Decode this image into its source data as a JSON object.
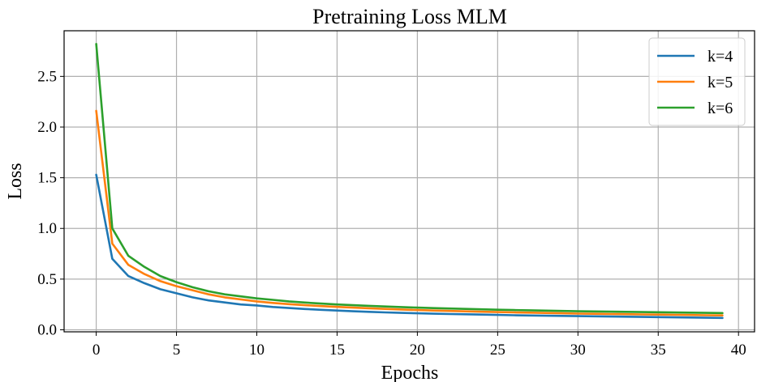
{
  "chart_data": {
    "type": "line",
    "title": "Pretraining Loss MLM",
    "xlabel": "Epochs",
    "ylabel": "Loss",
    "xlim": [
      -2,
      41
    ],
    "ylim": [
      -0.02,
      2.95
    ],
    "xticks": [
      0,
      5,
      10,
      15,
      20,
      25,
      30,
      35,
      40
    ],
    "yticks": [
      0.0,
      0.5,
      1.0,
      1.5,
      2.0,
      2.5
    ],
    "xtick_labels": [
      "0",
      "5",
      "10",
      "15",
      "20",
      "25",
      "30",
      "35",
      "40"
    ],
    "ytick_labels": [
      "0.0",
      "0.5",
      "1.0",
      "1.5",
      "2.0",
      "2.5"
    ],
    "grid": true,
    "legend_position": "top-right",
    "x": [
      0,
      1,
      2,
      3,
      4,
      5,
      6,
      7,
      8,
      9,
      10,
      11,
      12,
      13,
      14,
      15,
      16,
      17,
      18,
      19,
      20,
      21,
      22,
      23,
      24,
      25,
      26,
      27,
      28,
      29,
      30,
      31,
      32,
      33,
      34,
      35,
      36,
      37,
      38,
      39
    ],
    "series": [
      {
        "name": "k=4",
        "color": "#1f77b4",
        "values": [
          1.53,
          0.7,
          0.53,
          0.46,
          0.4,
          0.36,
          0.32,
          0.29,
          0.27,
          0.25,
          0.24,
          0.225,
          0.215,
          0.205,
          0.197,
          0.19,
          0.183,
          0.177,
          0.172,
          0.167,
          0.163,
          0.159,
          0.156,
          0.153,
          0.15,
          0.147,
          0.144,
          0.141,
          0.139,
          0.137,
          0.135,
          0.133,
          0.131,
          0.129,
          0.127,
          0.125,
          0.123,
          0.121,
          0.119,
          0.117
        ]
      },
      {
        "name": "k=5",
        "color": "#ff7f0e",
        "values": [
          2.16,
          0.85,
          0.64,
          0.55,
          0.48,
          0.43,
          0.39,
          0.35,
          0.32,
          0.3,
          0.28,
          0.265,
          0.253,
          0.243,
          0.234,
          0.226,
          0.219,
          0.212,
          0.206,
          0.2,
          0.195,
          0.19,
          0.186,
          0.182,
          0.178,
          0.175,
          0.172,
          0.169,
          0.166,
          0.163,
          0.16,
          0.158,
          0.156,
          0.154,
          0.152,
          0.15,
          0.148,
          0.146,
          0.144,
          0.142
        ]
      },
      {
        "name": "k=6",
        "color": "#2ca02c",
        "values": [
          2.82,
          1.0,
          0.73,
          0.62,
          0.53,
          0.47,
          0.42,
          0.38,
          0.35,
          0.33,
          0.31,
          0.295,
          0.28,
          0.269,
          0.259,
          0.25,
          0.243,
          0.236,
          0.23,
          0.224,
          0.219,
          0.214,
          0.21,
          0.206,
          0.202,
          0.198,
          0.195,
          0.192,
          0.189,
          0.186,
          0.183,
          0.181,
          0.179,
          0.177,
          0.175,
          0.173,
          0.171,
          0.169,
          0.167,
          0.165
        ]
      }
    ]
  }
}
